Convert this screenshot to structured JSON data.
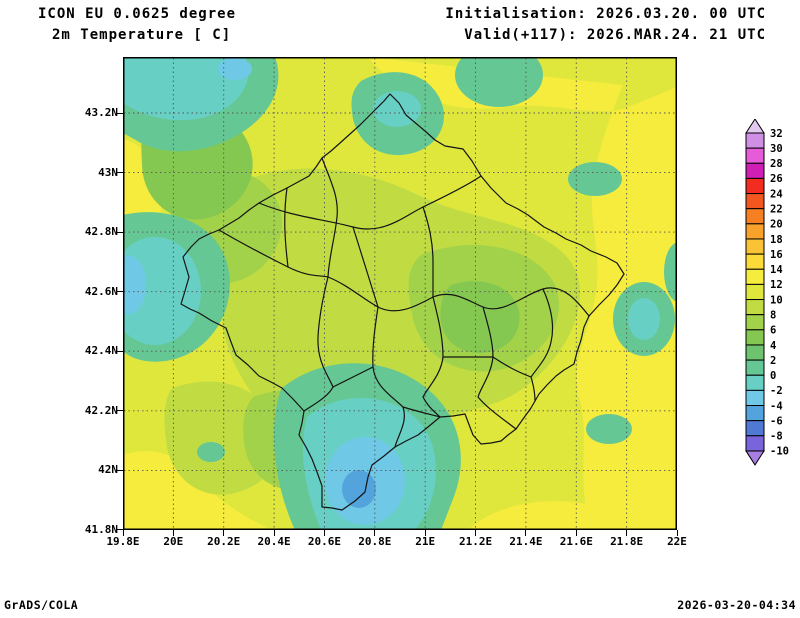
{
  "header": {
    "line1": "ICON EU 0.0625 degree",
    "line2": "2m Temperature [ C]",
    "init": "Initialisation: 2026.03.20. 00 UTC",
    "valid": "Valid(+117): 2026.MAR.24. 21 UTC"
  },
  "footer": {
    "left": "GrADS/COLA",
    "right": "2026-03-20-04:34"
  },
  "map": {
    "lat_ticks": [
      "43.2N",
      "43N",
      "42.8N",
      "42.6N",
      "42.4N",
      "42.2N",
      "42N",
      "41.8N"
    ],
    "lon_ticks": [
      "19.8E",
      "20E",
      "20.2E",
      "20.4E",
      "20.6E",
      "20.8E",
      "21E",
      "21.2E",
      "21.4E",
      "21.6E",
      "21.8E",
      "22E"
    ]
  },
  "colorbar": {
    "labels": [
      "32",
      "30",
      "28",
      "26",
      "24",
      "22",
      "20",
      "18",
      "16",
      "14",
      "12",
      "10",
      "8",
      "6",
      "4",
      "2",
      "0",
      "-2",
      "-4",
      "-6",
      "-8",
      "-10"
    ],
    "colors": [
      "#e3c8ef",
      "#cf8fe4",
      "#e55bd8",
      "#cf1fb4",
      "#f22c20",
      "#f1571f",
      "#f57f21",
      "#f8a22b",
      "#fac336",
      "#fbda3a",
      "#f6ec3d",
      "#dfe73d",
      "#c1dc43",
      "#a2d24a",
      "#84c852",
      "#6ec46e",
      "#65c793",
      "#68cfc5",
      "#6fc9e6",
      "#53a3dc",
      "#4f79d2",
      "#7a64dc",
      "#a77ee2"
    ]
  },
  "chart_data": {
    "type": "heatmap",
    "title": "2m Temperature [ C]",
    "model": "ICON EU 0.0625 degree",
    "init_time": "2026.03.20. 00 UTC",
    "valid_time": "2026.MAR.24. 21 UTC (+117)",
    "units": "C",
    "x_ticks": [
      "19.8E",
      "20E",
      "20.2E",
      "20.4E",
      "20.6E",
      "20.8E",
      "21E",
      "21.2E",
      "21.4E",
      "21.6E",
      "21.8E",
      "22E"
    ],
    "y_ticks": [
      "43.2N",
      "43N",
      "42.8N",
      "42.6N",
      "42.4N",
      "42.2N",
      "42N",
      "41.8N"
    ],
    "scale_values": [
      32,
      30,
      28,
      26,
      24,
      22,
      20,
      18,
      16,
      14,
      12,
      10,
      8,
      6,
      4,
      2,
      0,
      -2,
      -4,
      -6,
      -8,
      -10
    ],
    "legend_position": "right",
    "grid": "dashed lat/lon grid every 0.2 degrees",
    "field_estimate": [
      {
        "area": "northwest corner and west edge",
        "range_c": "-4 to 2"
      },
      {
        "area": "top-center patches",
        "range_c": "0 to 4"
      },
      {
        "area": "Kosovo interior (center)",
        "range_c": "6 to 12"
      },
      {
        "area": "east, top-right and map edges",
        "range_c": "10 to 14"
      },
      {
        "area": "south-central valley (bottom-center)",
        "range_c": "-6 to 0"
      }
    ]
  }
}
